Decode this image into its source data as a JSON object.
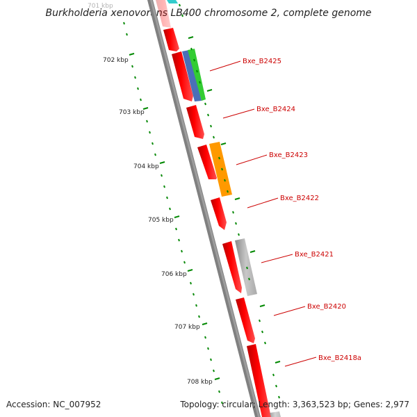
{
  "title": "Burkholderia xenovorans LB400 chromosome 2, complete genome",
  "footer": {
    "accession": "Accession: NC_007952",
    "summary": "Topology: circular; Length: 3,363,523 bp; Genes: 2,977"
  },
  "scale": {
    "ticks": [
      {
        "label": "701 kbp",
        "faded": true
      },
      {
        "label": "702 kbp"
      },
      {
        "label": "703 kbp"
      },
      {
        "label": "704 kbp"
      },
      {
        "label": "705 kbp"
      },
      {
        "label": "706 kbp"
      },
      {
        "label": "707 kbp"
      },
      {
        "label": "708 kbp"
      }
    ]
  },
  "genes": [
    {
      "label": "Bxe_B2425"
    },
    {
      "label": "Bxe_B2424"
    },
    {
      "label": "Bxe_B2423"
    },
    {
      "label": "Bxe_B2422"
    },
    {
      "label": "Bxe_B2421"
    },
    {
      "label": "Bxe_B2420"
    },
    {
      "label": "Bxe_B2418a"
    }
  ],
  "colors": {
    "cds": "#ff0000",
    "rrna_green": "#33cc33",
    "feature_blue": "#4a6fb8",
    "feature_orange": "#ff9900",
    "feature_gray": "#bbbbbb",
    "feature_cyan": "#33cccc",
    "backbone": "#808080",
    "tick": "#008800",
    "leader": "#cc0000"
  }
}
